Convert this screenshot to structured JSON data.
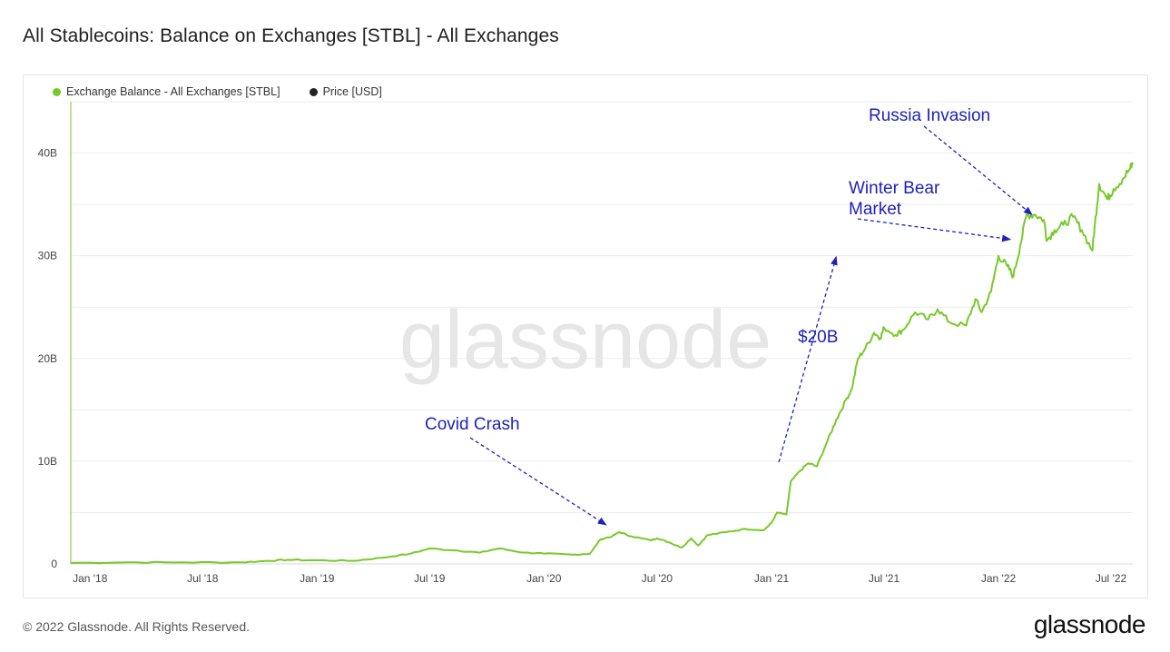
{
  "header": {
    "title": "All Stablecoins: Balance on Exchanges [STBL] - All Exchanges"
  },
  "legend": [
    {
      "label": "Exchange Balance - All Exchanges [STBL]",
      "color": "#78c92a"
    },
    {
      "label": "Price [USD]",
      "color": "#222222"
    }
  ],
  "watermark": "glassnode",
  "footer": {
    "copyright": "© 2022 Glassnode. All Rights Reserved.",
    "logo": "glassnode"
  },
  "annotations": [
    {
      "text": "Russia Invasion",
      "lines": [
        "Russia Invasion"
      ],
      "target_date": "2022-02-24",
      "target_value": 34000000000
    },
    {
      "text": "Winter Bear Market",
      "lines": [
        "Winter Bear",
        "Market"
      ],
      "target_date": "2022-01-20",
      "target_value": 31600000000
    },
    {
      "text": "$20B",
      "lines": [
        "$20B"
      ],
      "target_date": "2021-04-15",
      "target_value": 29900000000
    },
    {
      "text": "Covid Crash",
      "lines": [
        "Covid Crash"
      ],
      "target_date": "2020-04-10",
      "target_value": 3800000000
    }
  ],
  "colors": {
    "series": "#78c92a",
    "annotation": "#1e22b8",
    "grid": "#ececec"
  },
  "chart_data": {
    "type": "line",
    "title": "All Stablecoins: Balance on Exchanges [STBL] - All Exchanges",
    "xlabel": "",
    "ylabel": "",
    "x_tick_labels": [
      "Jan '18",
      "Jul '18",
      "Jan '19",
      "Jul '19",
      "Jan '20",
      "Jul '20",
      "Jan '21",
      "Jul '21",
      "Jan '22",
      "Jul '22"
    ],
    "x_tick_dates": [
      "2018-01-01",
      "2018-07-01",
      "2019-01-01",
      "2019-07-01",
      "2020-01-01",
      "2020-07-01",
      "2021-01-01",
      "2021-07-01",
      "2022-01-01",
      "2022-07-01"
    ],
    "y_tick_labels": [
      "0",
      "10B",
      "20B",
      "30B",
      "40B"
    ],
    "y_tick_values": [
      0,
      10000000000,
      20000000000,
      30000000000,
      40000000000
    ],
    "xlim": [
      "2017-12-01",
      "2022-08-05"
    ],
    "ylim": [
      0,
      45000000000
    ],
    "grid": true,
    "legend_position": "top-left",
    "series": [
      {
        "name": "Exchange Balance - All Exchanges [STBL]",
        "color": "#78c92a",
        "points": [
          [
            "2017-12-01",
            100000000
          ],
          [
            "2018-03-01",
            150000000
          ],
          [
            "2018-06-01",
            150000000
          ],
          [
            "2018-09-01",
            150000000
          ],
          [
            "2018-10-15",
            300000000
          ],
          [
            "2018-11-15",
            400000000
          ],
          [
            "2019-01-01",
            350000000
          ],
          [
            "2019-03-01",
            300000000
          ],
          [
            "2019-04-15",
            600000000
          ],
          [
            "2019-06-01",
            1000000000
          ],
          [
            "2019-07-01",
            1500000000
          ],
          [
            "2019-08-15",
            1300000000
          ],
          [
            "2019-09-20",
            1100000000
          ],
          [
            "2019-10-20",
            1500000000
          ],
          [
            "2019-12-01",
            1100000000
          ],
          [
            "2020-01-01",
            1000000000
          ],
          [
            "2020-02-15",
            900000000
          ],
          [
            "2020-03-15",
            1000000000
          ],
          [
            "2020-04-01",
            2400000000
          ],
          [
            "2020-04-20",
            2700000000
          ],
          [
            "2020-05-01",
            3100000000
          ],
          [
            "2020-05-20",
            2700000000
          ],
          [
            "2020-06-20",
            2300000000
          ],
          [
            "2020-07-01",
            2500000000
          ],
          [
            "2020-07-20",
            2100000000
          ],
          [
            "2020-08-10",
            1600000000
          ],
          [
            "2020-08-25",
            2500000000
          ],
          [
            "2020-09-05",
            1800000000
          ],
          [
            "2020-09-20",
            2800000000
          ],
          [
            "2020-10-20",
            3100000000
          ],
          [
            "2020-11-20",
            3400000000
          ],
          [
            "2020-12-20",
            3300000000
          ],
          [
            "2021-01-01",
            4000000000
          ],
          [
            "2021-01-10",
            5000000000
          ],
          [
            "2021-01-25",
            4800000000
          ],
          [
            "2021-02-01",
            8000000000
          ],
          [
            "2021-02-15",
            9000000000
          ],
          [
            "2021-03-01",
            9800000000
          ],
          [
            "2021-03-15",
            9500000000
          ],
          [
            "2021-04-01",
            12000000000
          ],
          [
            "2021-04-15",
            14000000000
          ],
          [
            "2021-05-01",
            16000000000
          ],
          [
            "2021-05-10",
            17000000000
          ],
          [
            "2021-05-20",
            20000000000
          ],
          [
            "2021-06-01",
            21000000000
          ],
          [
            "2021-06-15",
            22500000000
          ],
          [
            "2021-06-25",
            22000000000
          ],
          [
            "2021-07-01",
            23000000000
          ],
          [
            "2021-07-20",
            22300000000
          ],
          [
            "2021-08-01",
            22800000000
          ],
          [
            "2021-08-20",
            24500000000
          ],
          [
            "2021-09-10",
            23800000000
          ],
          [
            "2021-09-25",
            24800000000
          ],
          [
            "2021-10-15",
            23500000000
          ],
          [
            "2021-11-10",
            23200000000
          ],
          [
            "2021-11-25",
            25800000000
          ],
          [
            "2021-12-05",
            24500000000
          ],
          [
            "2021-12-20",
            26500000000
          ],
          [
            "2022-01-01",
            30000000000
          ],
          [
            "2022-01-15",
            29000000000
          ],
          [
            "2022-01-25",
            28000000000
          ],
          [
            "2022-02-05",
            31000000000
          ],
          [
            "2022-02-15",
            34000000000
          ],
          [
            "2022-03-01",
            34000000000
          ],
          [
            "2022-03-15",
            33500000000
          ],
          [
            "2022-03-20",
            31500000000
          ],
          [
            "2022-04-01",
            32500000000
          ],
          [
            "2022-04-15",
            33000000000
          ],
          [
            "2022-05-01",
            33800000000
          ],
          [
            "2022-05-15",
            32500000000
          ],
          [
            "2022-06-01",
            30500000000
          ],
          [
            "2022-06-05",
            33000000000
          ],
          [
            "2022-06-12",
            37000000000
          ],
          [
            "2022-06-25",
            35500000000
          ],
          [
            "2022-07-05",
            36500000000
          ],
          [
            "2022-07-20",
            37500000000
          ],
          [
            "2022-08-01",
            38500000000
          ],
          [
            "2022-08-05",
            39000000000
          ]
        ]
      }
    ]
  }
}
